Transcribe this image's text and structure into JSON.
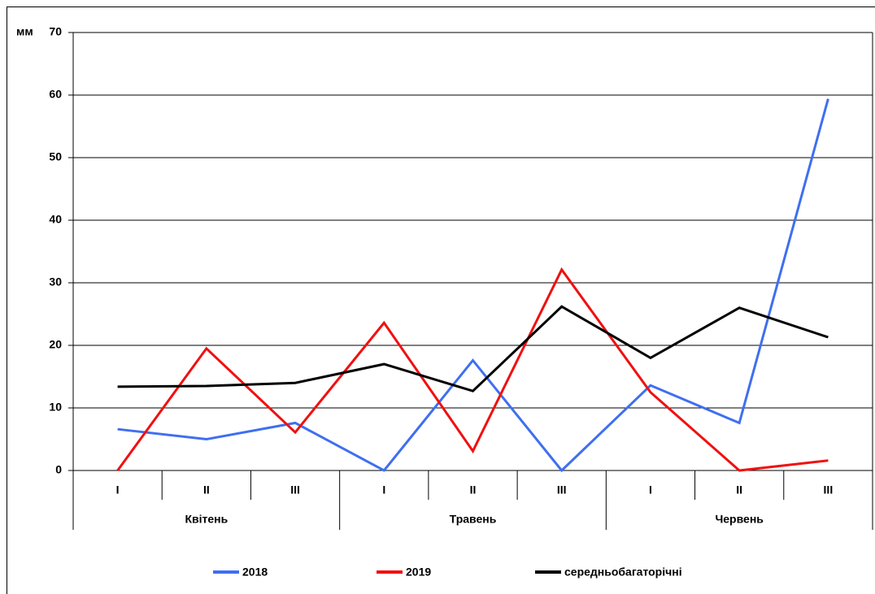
{
  "chart_data": {
    "type": "line",
    "y_label": "мм",
    "categories": [
      "I",
      "II",
      "III",
      "I",
      "II",
      "III",
      "I",
      "II",
      "III"
    ],
    "groups": [
      "Квітень",
      "Травень",
      "Червень"
    ],
    "series": [
      {
        "name": "2018",
        "color": "#3f6ff0",
        "values": [
          6.6,
          5.0,
          7.6,
          0,
          17.6,
          0,
          13.6,
          7.6,
          59.4
        ]
      },
      {
        "name": "2019",
        "color": "#f01010",
        "values": [
          0,
          19.5,
          6.1,
          23.6,
          3.1,
          32.1,
          12.5,
          0,
          1.6
        ]
      },
      {
        "name": "середньобагаторічні",
        "color": "#000000",
        "values": [
          13.4,
          13.5,
          14.0,
          17.0,
          12.7,
          26.2,
          18.0,
          26.0,
          21.3
        ]
      }
    ],
    "ylim": [
      0,
      70
    ],
    "yticks": [
      0,
      10,
      20,
      30,
      40,
      50,
      60,
      70
    ],
    "grid": true,
    "legend": "bottom"
  }
}
